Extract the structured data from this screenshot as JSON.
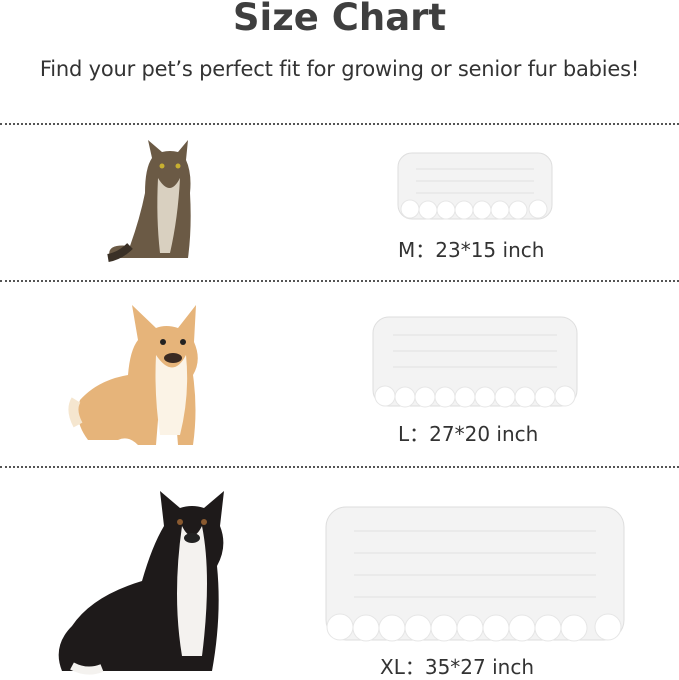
{
  "header": {
    "title": "Size Chart",
    "subtitle": "Find your pet’s perfect fit for growing or senior fur babies!"
  },
  "sizes": [
    {
      "label": "M：23*15 inch",
      "pet": "cat-image",
      "mat": "mat-m-image"
    },
    {
      "label": "L：27*20 inch",
      "pet": "corgi-image",
      "mat": "mat-l-image"
    },
    {
      "label": "XL：35*27 inch",
      "pet": "dog-image",
      "mat": "mat-xl-image"
    }
  ],
  "colors": {
    "text": "#3f3f3f",
    "mat": "#f4f4f4",
    "divider": "#555555"
  }
}
